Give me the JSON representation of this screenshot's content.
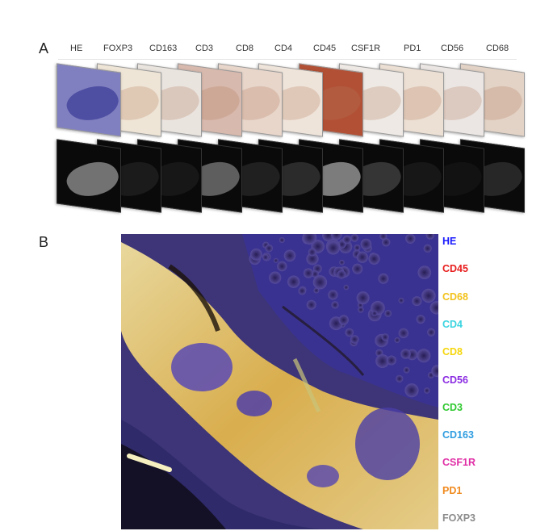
{
  "panel_a": {
    "letter": "A",
    "markers": [
      "HE",
      "FOXP3",
      "CD163",
      "CD3",
      "CD8",
      "CD4",
      "CD45",
      "CSF1R",
      "PD1",
      "CD56",
      "CD68"
    ],
    "bright_colors": [
      "#8080c0",
      "#efe5d6",
      "#eae4df",
      "#d8b9ad",
      "#e8d6cb",
      "#efe4da",
      "#b25035",
      "#eee9e4",
      "#ecdfd3",
      "#ebe6e3",
      "#e3d3c6"
    ],
    "gray_intensity": [
      0.55,
      0.12,
      0.1,
      0.45,
      0.15,
      0.2,
      0.6,
      0.25,
      0.1,
      0.08,
      0.18
    ]
  },
  "panel_b": {
    "letter": "B",
    "legend": [
      {
        "label": "HE",
        "color": "#1a1aff"
      },
      {
        "label": "CD45",
        "color": "#e81c1c"
      },
      {
        "label": "CD68",
        "color": "#f2c21b"
      },
      {
        "label": "CD4",
        "color": "#3ad4e0"
      },
      {
        "label": "CD8",
        "color": "#f5d60c"
      },
      {
        "label": "CD56",
        "color": "#8a2be2"
      },
      {
        "label": "CD3",
        "color": "#2ec82e"
      },
      {
        "label": "CD163",
        "color": "#2f9de0"
      },
      {
        "label": "CSF1R",
        "color": "#e02fa6"
      },
      {
        "label": "PD1",
        "color": "#f08a1e"
      },
      {
        "label": "FOXP3",
        "color": "#8c8c8c"
      }
    ]
  }
}
